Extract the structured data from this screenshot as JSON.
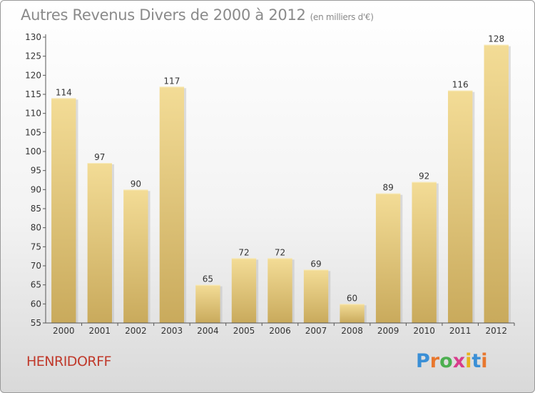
{
  "chart_data": {
    "type": "bar",
    "title": "Autres Revenus Divers de 2000 à 2012",
    "subtitle": "(en milliers d'€)",
    "categories": [
      "2000",
      "2001",
      "2002",
      "2003",
      "2004",
      "2005",
      "2006",
      "2007",
      "2008",
      "2009",
      "2010",
      "2011",
      "2012"
    ],
    "values": [
      114,
      97,
      90,
      117,
      65,
      72,
      72,
      69,
      60,
      89,
      92,
      116,
      128
    ],
    "ylim": [
      55,
      130
    ],
    "yticks": [
      55,
      60,
      65,
      70,
      75,
      80,
      85,
      90,
      95,
      100,
      105,
      110,
      115,
      120,
      125,
      130
    ],
    "grid": false,
    "bar_color_top": "#f3dc96",
    "bar_color_bottom": "#c9aa5c"
  },
  "footer": {
    "commune": "HENRIDORFF",
    "commune_color": "#c0392b"
  },
  "logo": {
    "text": "Proxiti",
    "letter_colors": [
      "#3a8fd6",
      "#e8772e",
      "#4caf50",
      "#d83c8c",
      "#e8b21c",
      "#3a8fd6",
      "#e8772e"
    ]
  }
}
